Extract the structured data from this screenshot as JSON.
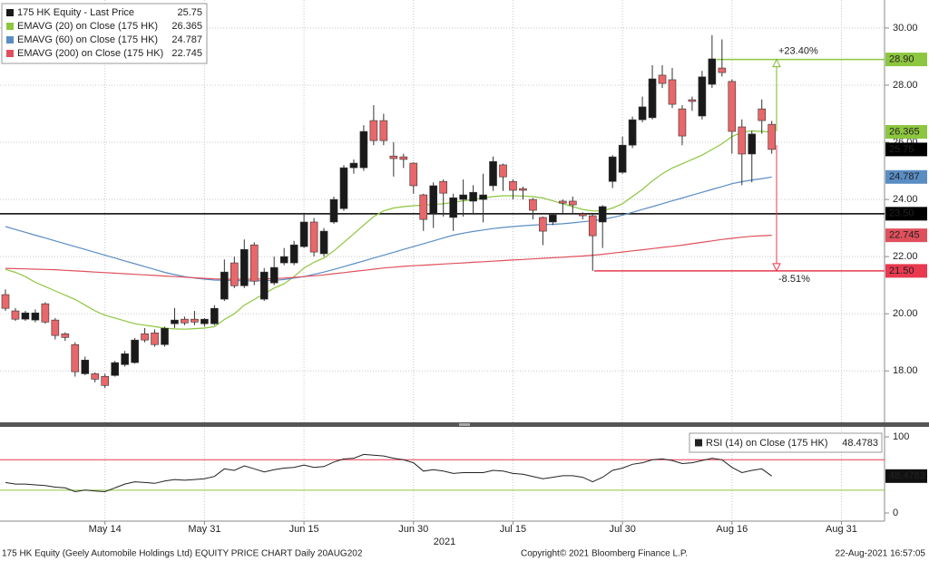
{
  "chart_data": [
    {
      "type": "candlestick",
      "categories": [
        null,
        null,
        null,
        null,
        null,
        null,
        null,
        null,
        null,
        null,
        "May 14",
        null,
        null,
        null,
        null,
        null,
        null,
        null,
        null,
        null,
        "May 31",
        null,
        null,
        null,
        null,
        null,
        null,
        null,
        null,
        null,
        "Jun 15",
        null,
        null,
        null,
        null,
        null,
        null,
        null,
        null,
        null,
        null,
        "Jun 30",
        null,
        null,
        null,
        null,
        null,
        null,
        null,
        null,
        null,
        "Jul 15",
        null,
        null,
        null,
        null,
        null,
        null,
        null,
        null,
        null,
        null,
        "Jul 30",
        null,
        null,
        null,
        null,
        null,
        null,
        null,
        null,
        null,
        null,
        "Aug 16",
        null,
        null,
        null,
        null,
        null,
        null,
        null,
        null,
        null,
        null,
        "Aug 31",
        null,
        null,
        null,
        null
      ],
      "x_year_label": "2021",
      "candles": {
        "name": "175 HK Equity - Last Price",
        "up_color": "#1a1a1a",
        "down_color": "#e8676a",
        "open": [
          20.67,
          20.1,
          19.81,
          19.78,
          20.35,
          19.78,
          19.3,
          18.92,
          17.9,
          17.9,
          17.81,
          17.84,
          18.22,
          18.29,
          19.3,
          19.33,
          18.92,
          19.65,
          19.81,
          19.81,
          19.65,
          19.65,
          20.51,
          21.78,
          20.98,
          22.41,
          20.51,
          21.08,
          21.78,
          21.78,
          22.35,
          23.21,
          22.1,
          23.21,
          23.68,
          25.11,
          25.11,
          26.76,
          26.76,
          25.52,
          25.49,
          25.27,
          24.16,
          23.52,
          24.63,
          23.37,
          24.0,
          23.94,
          24.0,
          24.48,
          25.21,
          24.63,
          24.38,
          24.0,
          23.37,
          23.21,
          23.94,
          23.94,
          23.49,
          23.43,
          23.21,
          24.63,
          24.95,
          25.9,
          26.79,
          26.86,
          28.35,
          28.19,
          27.17,
          27.49,
          26.92,
          28.03,
          28.6,
          28.13,
          26.54,
          25.59,
          27.17,
          26.63,
          null,
          null,
          null,
          null,
          null,
          null,
          null,
          null,
          null,
          null,
          null
        ],
        "high": [
          20.85,
          20.2,
          20.1,
          20.15,
          20.4,
          19.85,
          19.35,
          19.0,
          18.5,
          17.95,
          17.9,
          18.35,
          18.7,
          19.15,
          19.5,
          19.45,
          19.55,
          20.2,
          19.9,
          20.1,
          19.85,
          20.3,
          21.9,
          22.0,
          22.6,
          22.5,
          21.6,
          22.0,
          22.3,
          22.55,
          23.5,
          23.35,
          23.0,
          24.1,
          25.2,
          25.4,
          26.6,
          27.3,
          27.0,
          26.0,
          25.6,
          25.3,
          24.2,
          24.6,
          24.7,
          24.2,
          24.7,
          24.5,
          24.9,
          25.5,
          25.25,
          24.7,
          24.45,
          24.05,
          23.4,
          23.5,
          24.0,
          24.1,
          23.55,
          23.5,
          23.8,
          25.55,
          26.2,
          26.9,
          27.6,
          28.7,
          28.7,
          28.6,
          27.3,
          27.6,
          28.5,
          29.75,
          29.6,
          28.2,
          26.8,
          26.4,
          27.5,
          26.75,
          null,
          null,
          null,
          null,
          null,
          null,
          null,
          null,
          null,
          null,
          null
        ],
        "low": [
          20.1,
          19.75,
          19.75,
          19.7,
          19.65,
          19.1,
          19.05,
          17.8,
          17.85,
          17.6,
          17.4,
          17.8,
          18.15,
          18.25,
          19.0,
          18.85,
          18.85,
          19.5,
          19.6,
          19.6,
          19.55,
          19.6,
          20.45,
          20.9,
          20.9,
          21.0,
          20.45,
          21.0,
          21.7,
          21.7,
          22.3,
          22.0,
          22.0,
          23.15,
          23.6,
          24.9,
          25.0,
          25.9,
          25.9,
          24.8,
          25.1,
          24.2,
          22.9,
          23.0,
          23.4,
          22.9,
          23.4,
          23.5,
          23.2,
          24.3,
          24.3,
          24.0,
          24.0,
          23.3,
          22.4,
          23.1,
          23.5,
          23.5,
          23.3,
          21.5,
          22.3,
          24.4,
          24.9,
          25.8,
          26.7,
          26.8,
          27.9,
          27.2,
          25.9,
          27.1,
          26.8,
          27.9,
          28.3,
          25.6,
          24.5,
          24.6,
          26.3,
          25.6,
          null,
          null,
          null,
          null,
          null,
          null,
          null,
          null,
          null,
          null,
          null
        ],
        "close": [
          20.19,
          19.81,
          20.03,
          20.03,
          19.71,
          19.24,
          19.17,
          17.97,
          18.38,
          17.71,
          17.49,
          18.29,
          18.6,
          19.08,
          19.08,
          18.92,
          19.49,
          19.78,
          19.68,
          19.71,
          19.81,
          20.19,
          21.46,
          20.98,
          22.25,
          21.14,
          21.46,
          21.62,
          22.0,
          22.41,
          23.21,
          22.16,
          22.89,
          24.0,
          25.11,
          25.27,
          26.38,
          26.06,
          26.06,
          25.43,
          25.4,
          24.48,
          23.3,
          24.48,
          24.22,
          24.06,
          24.16,
          24.25,
          24.16,
          25.33,
          24.79,
          24.32,
          24.32,
          23.62,
          22.89,
          23.46,
          23.87,
          23.81,
          23.43,
          22.73,
          23.75,
          25.49,
          25.9,
          26.79,
          27.24,
          28.22,
          28.06,
          27.33,
          26.22,
          27.43,
          28.29,
          28.92,
          28.44,
          26.38,
          25.59,
          26.29,
          26.76,
          25.75,
          null,
          null,
          null,
          null,
          null,
          null,
          null,
          null,
          null,
          null,
          null
        ]
      },
      "series": [
        {
          "name": "EMAVG (20)  on Close (175 HK)",
          "color": "#8dc63f",
          "values": [
            21.55,
            21.45,
            21.3,
            21.1,
            20.95,
            20.8,
            20.65,
            20.5,
            20.3,
            20.1,
            19.95,
            19.85,
            19.75,
            19.65,
            19.6,
            19.55,
            19.5,
            19.47,
            19.46,
            19.48,
            19.5,
            19.55,
            19.8,
            20.0,
            20.3,
            20.5,
            20.7,
            20.9,
            21.05,
            21.3,
            21.6,
            21.8,
            21.95,
            22.2,
            22.5,
            22.8,
            23.1,
            23.4,
            23.6,
            23.7,
            23.75,
            23.78,
            23.8,
            23.82,
            23.85,
            23.9,
            23.95,
            24.0,
            24.05,
            24.1,
            24.13,
            24.13,
            24.12,
            24.1,
            24.05,
            23.95,
            23.85,
            23.75,
            23.65,
            23.6,
            23.6,
            23.7,
            23.85,
            24.1,
            24.35,
            24.65,
            24.9,
            25.1,
            25.25,
            25.4,
            25.55,
            25.75,
            25.95,
            26.2,
            26.35,
            26.4,
            26.38,
            26.365,
            null,
            null,
            null,
            null,
            null,
            null,
            null,
            null,
            null,
            null,
            null
          ]
        },
        {
          "name": "EMAVG (60)  on Close (175 HK)",
          "color": "#5a8dc4",
          "values": [
            23.05,
            22.95,
            22.85,
            22.75,
            22.65,
            22.55,
            22.45,
            22.35,
            22.25,
            22.15,
            22.05,
            21.95,
            21.85,
            21.75,
            21.65,
            21.55,
            21.45,
            21.37,
            21.3,
            21.25,
            21.21,
            21.18,
            21.17,
            21.16,
            21.15,
            21.15,
            21.16,
            21.17,
            21.2,
            21.25,
            21.3,
            21.38,
            21.46,
            21.55,
            21.65,
            21.75,
            21.85,
            21.95,
            22.05,
            22.15,
            22.25,
            22.35,
            22.45,
            22.55,
            22.65,
            22.75,
            22.82,
            22.88,
            22.93,
            22.98,
            23.02,
            23.05,
            23.08,
            23.1,
            23.12,
            23.13,
            23.15,
            23.18,
            23.22,
            23.25,
            23.3,
            23.37,
            23.45,
            23.55,
            23.65,
            23.75,
            23.85,
            23.95,
            24.05,
            24.15,
            24.25,
            24.35,
            24.45,
            24.55,
            24.62,
            24.68,
            24.73,
            24.787,
            null,
            null,
            null,
            null,
            null,
            null,
            null,
            null,
            null,
            null,
            null
          ]
        },
        {
          "name": "EMAVG (200)  on Close (175 HK)",
          "color": "#e0505c",
          "values": [
            21.59,
            21.58,
            21.57,
            21.56,
            21.55,
            21.54,
            21.52,
            21.5,
            21.48,
            21.46,
            21.44,
            21.42,
            21.4,
            21.38,
            21.36,
            21.34,
            21.32,
            21.3,
            21.28,
            21.26,
            21.24,
            21.22,
            21.21,
            21.21,
            21.21,
            21.21,
            21.22,
            21.23,
            21.25,
            21.27,
            21.3,
            21.33,
            21.36,
            21.4,
            21.44,
            21.48,
            21.52,
            21.56,
            21.6,
            21.63,
            21.66,
            21.68,
            21.7,
            21.72,
            21.74,
            21.76,
            21.78,
            21.8,
            21.82,
            21.84,
            21.86,
            21.88,
            21.9,
            21.92,
            21.94,
            21.96,
            21.98,
            22.0,
            22.02,
            22.05,
            22.08,
            22.12,
            22.16,
            22.2,
            22.24,
            22.28,
            22.32,
            22.36,
            22.4,
            22.45,
            22.5,
            22.55,
            22.6,
            22.64,
            22.68,
            22.71,
            22.73,
            22.745,
            null,
            null,
            null,
            null,
            null,
            null,
            null,
            null,
            null,
            null,
            null
          ]
        }
      ],
      "ylim": [
        16.2,
        30.98
      ],
      "yticks": [
        {
          "value": 30,
          "label": "30.00"
        },
        {
          "value": 28,
          "label": "28.00"
        },
        {
          "value": 26,
          "label": "26.00"
        },
        {
          "value": 24,
          "label": "24.00"
        },
        {
          "value": 22,
          "label": "22.00"
        },
        {
          "value": 20,
          "label": "20.00"
        },
        {
          "value": 18,
          "label": "18.00"
        }
      ],
      "grid": true,
      "legend": "upper left",
      "levels": [
        {
          "value": 28.9,
          "label": "28.90",
          "color": "#8dc63f"
        },
        {
          "value": 23.5,
          "label": "23.50",
          "color": "#000000"
        },
        {
          "value": 21.5,
          "label": "21.50",
          "color": "#e8394f"
        }
      ],
      "annotations": [
        {
          "text": "+23.40%",
          "color": "#7ab52e"
        },
        {
          "text": "-8.51%",
          "color": "#e8394f"
        }
      ]
    },
    {
      "type": "line",
      "series": [
        {
          "name": "RSI (14)  on Close (175 HK)",
          "color": "#222222",
          "values": [
            40,
            38,
            38,
            37,
            36,
            34,
            33,
            28,
            30,
            29,
            28,
            33,
            38,
            41,
            40,
            39,
            42,
            44,
            43,
            44,
            45,
            48,
            58,
            56,
            62,
            58,
            54,
            57,
            59,
            60,
            63,
            60,
            61,
            67,
            71,
            72,
            77,
            76,
            75,
            72,
            70,
            66,
            55,
            57,
            55,
            52,
            53,
            53,
            53,
            56,
            55,
            52,
            51,
            48,
            45,
            47,
            49,
            49,
            47,
            41,
            47,
            56,
            59,
            64,
            66,
            70,
            71,
            69,
            65,
            66,
            69,
            72,
            70,
            60,
            53,
            56,
            58,
            48.4783,
            null,
            null,
            null,
            null,
            null,
            null,
            null,
            null,
            null,
            null,
            null
          ]
        }
      ],
      "ylim": [
        -10.7,
        112
      ],
      "yticks": [
        100,
        0
      ],
      "levels": [
        {
          "value": 70,
          "color": "#e8394f"
        },
        {
          "value": 30,
          "color": "#8dc63f"
        }
      ],
      "legend": "upper right"
    }
  ],
  "footer": {
    "left": "175 HK Equity (Geely Automobile Holdings Ltd) EQUITY PRICE CHART  Daily 20AUG202",
    "center": "Copyright© 2021 Bloomberg Finance L.P.",
    "right": "22-Aug-2021 16:57:05"
  }
}
